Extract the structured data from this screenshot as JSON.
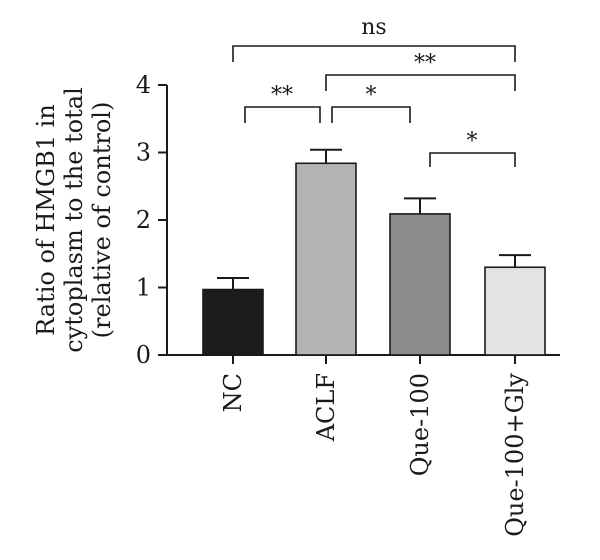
{
  "chart_data": {
    "type": "bar",
    "categories": [
      "NC",
      "ACLF",
      "Que-100",
      "Que-100+Gly"
    ],
    "values": [
      0.97,
      2.84,
      2.09,
      1.3
    ],
    "errors": [
      0.17,
      0.2,
      0.23,
      0.18
    ],
    "bar_colors": [
      "#1c1c1c",
      "#b4b4b4",
      "#8c8c8c",
      "#e3e3e3"
    ],
    "ylabel_lines": [
      "Ratio of HMGB1 in",
      "cytoplasm to the total",
      "(relative of control)"
    ],
    "ylim": [
      0,
      4
    ],
    "yticks": [
      "0",
      "1",
      "2",
      "3",
      "4"
    ],
    "significance": [
      {
        "from": 0,
        "to": 3,
        "label": "ns"
      },
      {
        "from": 1,
        "to": 3,
        "label": "**"
      },
      {
        "from": 0,
        "to": 1,
        "label": "**"
      },
      {
        "from": 1,
        "to": 2,
        "label": "*"
      },
      {
        "from": 2,
        "to": 3,
        "label": "*"
      }
    ],
    "grid": false,
    "legend": "none"
  }
}
